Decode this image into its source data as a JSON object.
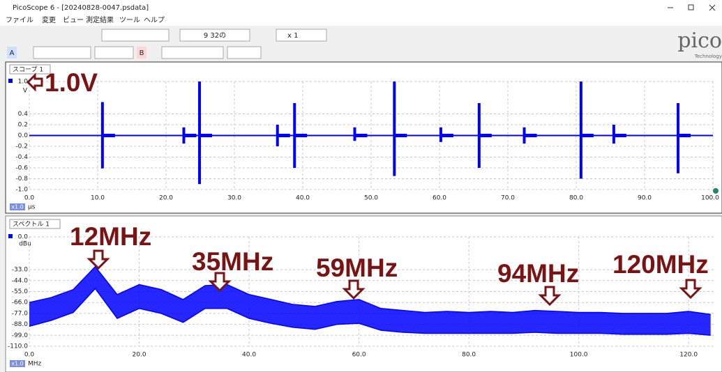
{
  "window": {
    "title": "PicoScope 6 - [20240828-0047.psdata]"
  },
  "menu": [
    "ファイル",
    "変更",
    "ビュー",
    "測定結果",
    "ツール",
    "ヘルプ"
  ],
  "toolbar": {
    "captures": "9 32の",
    "zoom": "x 1",
    "channel_a": "A",
    "channel_b": "B"
  },
  "logo": {
    "name": "pico",
    "tagline": "Technology"
  },
  "chart_data": [
    {
      "type": "range",
      "tab": "スコープ 1",
      "y_unit": "V",
      "x_unit": "μs",
      "zoom": "x1.0",
      "annotation": "1.0V",
      "color": "#0000ff",
      "grid": true,
      "x": [
        10.7,
        22.6,
        24.9,
        36.3,
        38.8,
        47.6,
        53.4,
        60.2,
        65.8,
        72.4,
        80.7,
        85.5,
        94.9
      ],
      "high": [
        0.62,
        0.15,
        1.0,
        0.2,
        0.6,
        0.15,
        1.0,
        0.15,
        0.6,
        0.15,
        1.0,
        0.2,
        0.6
      ],
      "low": [
        -0.61,
        -0.15,
        -0.9,
        -0.2,
        -0.6,
        -0.1,
        -0.75,
        -0.12,
        -0.6,
        -0.15,
        -0.8,
        -0.15,
        -0.7
      ],
      "xlim": [
        0,
        100
      ],
      "ylim": [
        -1,
        1
      ],
      "xticks": [
        {
          "value": 0,
          "label": "0.0"
        },
        {
          "value": 10,
          "label": "10.0"
        },
        {
          "value": 20,
          "label": "20.0"
        },
        {
          "value": 30,
          "label": "30.0"
        },
        {
          "value": 40,
          "label": "40.0"
        },
        {
          "value": 50,
          "label": "50.0"
        },
        {
          "value": 60,
          "label": "60.0"
        },
        {
          "value": 70,
          "label": "70.0"
        },
        {
          "value": 80,
          "label": "80.0"
        },
        {
          "value": 90,
          "label": "90.0"
        },
        {
          "value": 100,
          "label": "100.0"
        }
      ],
      "yticks": [
        {
          "value": 1,
          "label": "1.0"
        },
        {
          "value": 0.4,
          "label": "0.4"
        },
        {
          "value": 0.2,
          "label": "0.2"
        },
        {
          "value": 0,
          "label": "0.0"
        },
        {
          "value": -0.2,
          "label": "-0.2"
        },
        {
          "value": -0.4,
          "label": "-0.4"
        },
        {
          "value": -0.6,
          "label": "-0.6"
        },
        {
          "value": -0.8,
          "label": "-0.8"
        },
        {
          "value": -1,
          "label": "-1.0"
        }
      ]
    },
    {
      "type": "band",
      "tab": "スペクトル 1",
      "y_unit": "dBu",
      "x_unit": "MHz",
      "zoom": "x1.0",
      "color": "#0000ff",
      "grid": true,
      "annotations": [
        "12MHz",
        "35MHz",
        "59MHz",
        "94MHz",
        "120MHz"
      ],
      "x": [
        0,
        4,
        8,
        12,
        16,
        20,
        24,
        28,
        32,
        36,
        40,
        44,
        48,
        52,
        56,
        60,
        64,
        68,
        72,
        76,
        80,
        84,
        88,
        92,
        96,
        100,
        104,
        108,
        112,
        116,
        120,
        124
      ],
      "upper": [
        -66,
        -61,
        -53,
        -30,
        -58,
        -48,
        -53,
        -63,
        -49,
        -48,
        -58,
        -63,
        -68,
        -70,
        -65,
        -63,
        -72,
        -74,
        -76,
        -75,
        -76,
        -75,
        -76,
        -74,
        -75,
        -76,
        -76,
        -77,
        -77,
        -77,
        -75,
        -78
      ],
      "lower": [
        -90,
        -84,
        -76,
        -52,
        -82,
        -72,
        -77,
        -86,
        -72,
        -72,
        -82,
        -87,
        -91,
        -93,
        -88,
        -87,
        -94,
        -96,
        -97,
        -97,
        -97,
        -97,
        -97,
        -96,
        -97,
        -97,
        -97,
        -98,
        -98,
        -98,
        -97,
        -99
      ],
      "xlim": [
        0,
        124.8
      ],
      "ylim": [
        -110,
        0
      ],
      "xticks": [
        {
          "value": 0,
          "label": "0.0"
        },
        {
          "value": 20,
          "label": "20.0"
        },
        {
          "value": 40,
          "label": "40.0"
        },
        {
          "value": 60,
          "label": "60.0"
        },
        {
          "value": 80,
          "label": "80.0"
        },
        {
          "value": 100,
          "label": "100.0"
        },
        {
          "value": 120,
          "label": "120.0"
        }
      ],
      "yticks": [
        {
          "value": 0,
          "label": "0.0"
        },
        {
          "value": -33,
          "label": "-33.0"
        },
        {
          "value": -44,
          "label": "-44.0"
        },
        {
          "value": -55,
          "label": "-55.0"
        },
        {
          "value": -66,
          "label": "-66.0"
        },
        {
          "value": -77,
          "label": "-77.0"
        },
        {
          "value": -88,
          "label": "-88.0"
        },
        {
          "value": -99,
          "label": "-99.0"
        },
        {
          "value": -110,
          "label": "-110.0"
        }
      ]
    }
  ]
}
